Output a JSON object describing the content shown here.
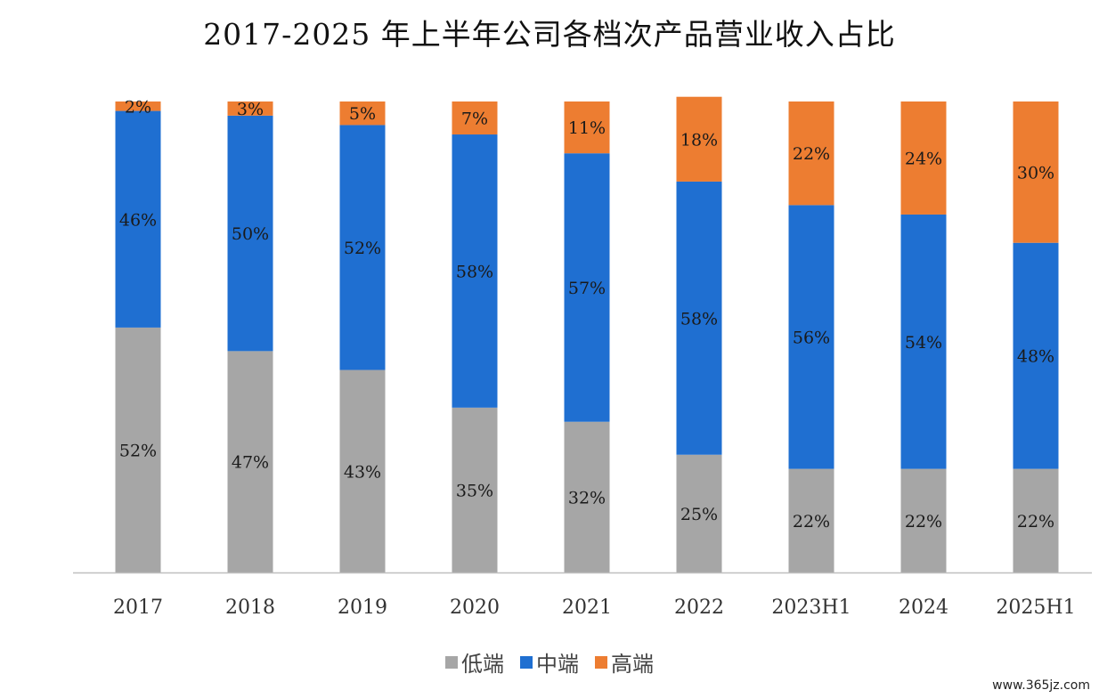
{
  "chart_data": {
    "type": "bar",
    "stacked": true,
    "title": "2017-2025 年上半年公司各档次产品营业收入占比",
    "categories": [
      "2017",
      "2018",
      "2019",
      "2020",
      "2021",
      "2022",
      "2023H1",
      "2024",
      "2025H1"
    ],
    "series": [
      {
        "name": "低端",
        "color": "#a6a6a6",
        "values": [
          52,
          47,
          43,
          35,
          32,
          25,
          22,
          22,
          22
        ]
      },
      {
        "name": "中端",
        "color": "#1f6fd1",
        "values": [
          46,
          50,
          52,
          58,
          57,
          58,
          56,
          54,
          48
        ]
      },
      {
        "name": "高端",
        "color": "#ed7d31",
        "values": [
          2,
          3,
          5,
          7,
          11,
          18,
          22,
          24,
          30
        ]
      }
    ],
    "value_suffix": "%",
    "ylim": [
      0,
      100
    ],
    "xlabel": "",
    "ylabel": "",
    "grid": false,
    "legend_position": "bottom"
  },
  "watermark": "www.365jz.com"
}
